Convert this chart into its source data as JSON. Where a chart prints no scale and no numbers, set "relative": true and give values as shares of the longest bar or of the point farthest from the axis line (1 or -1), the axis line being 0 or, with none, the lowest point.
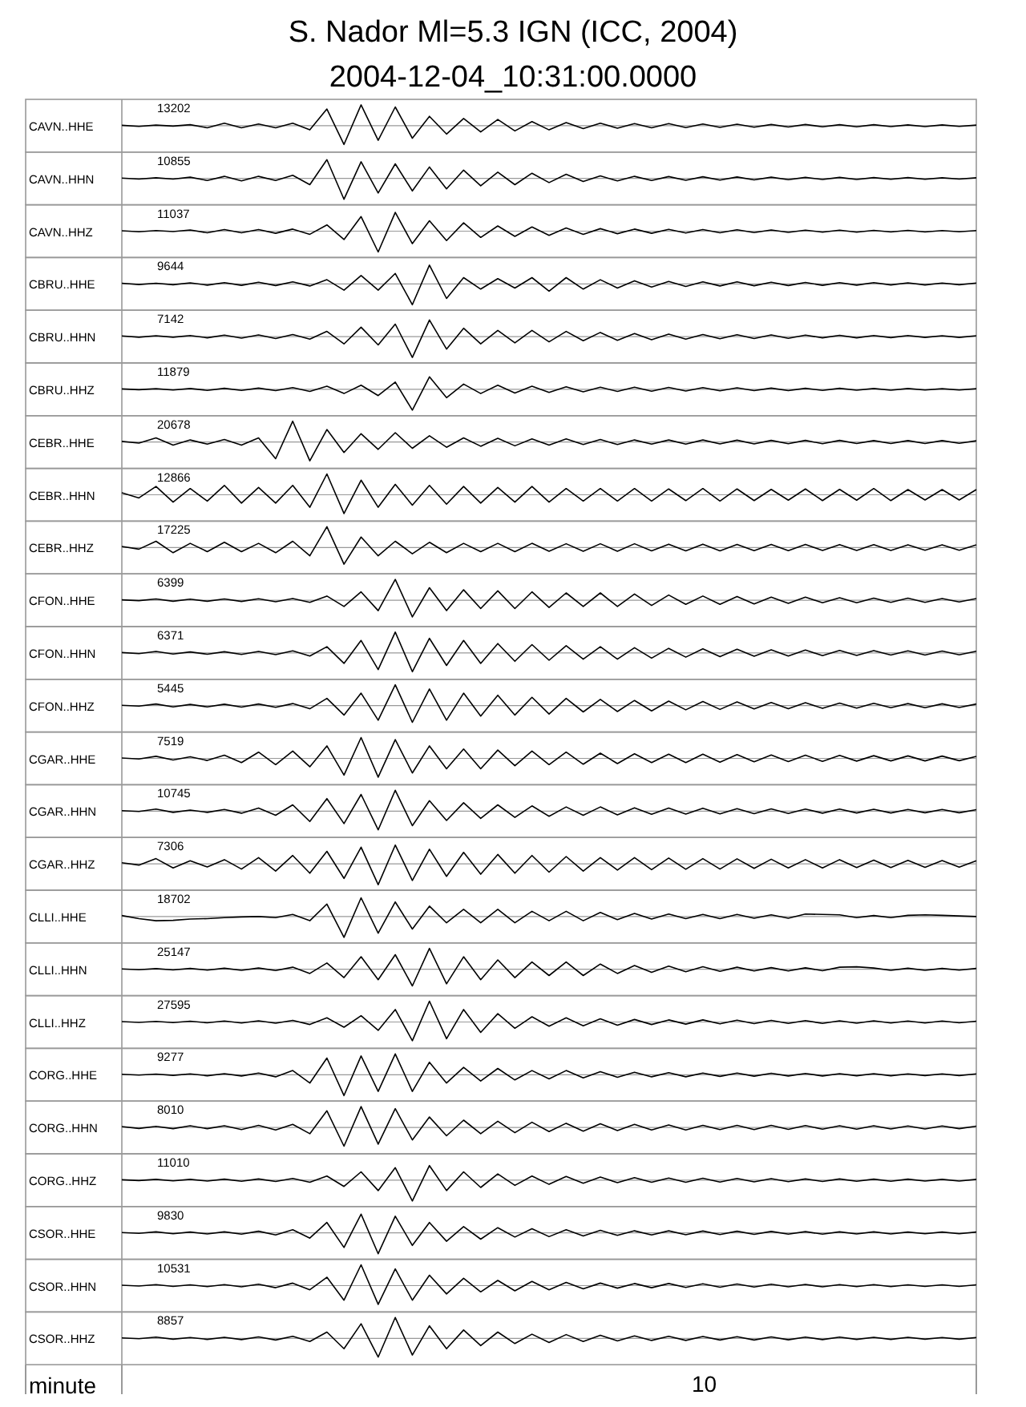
{
  "chart_data": [
    {
      "type": "line",
      "title": "S. Nador Ml=5.3 IGN (ICC, 2004)",
      "subtitle": "2004-12-04_10:31:00.0000",
      "color": "#000000",
      "ylabel": "CAVN..HHE",
      "annotations": [
        "13202"
      ],
      "relative": true,
      "categories": [
        null,
        null,
        null,
        null,
        null,
        null,
        null,
        null,
        null,
        null,
        null,
        null,
        null,
        null,
        null,
        null,
        null,
        null,
        null,
        null,
        null,
        null,
        null,
        null,
        null,
        null,
        null,
        null,
        null,
        null,
        null,
        null,
        null,
        null,
        null,
        null,
        null,
        null,
        null,
        null,
        null,
        null,
        null,
        null,
        null,
        null,
        null,
        null,
        null,
        null,
        null
      ],
      "values": [
        0.02,
        -0.03,
        0.03,
        -0.02,
        0.05,
        -0.1,
        0.12,
        -0.1,
        0.08,
        -0.1,
        0.12,
        -0.2,
        0.8,
        -0.9,
        1,
        -0.7,
        0.9,
        -0.6,
        0.45,
        -0.4,
        0.35,
        -0.3,
        0.3,
        -0.25,
        0.2,
        -0.2,
        0.15,
        -0.14,
        0.12,
        -0.12,
        0.1,
        -0.1,
        0.1,
        -0.09,
        0.08,
        -0.08,
        0.07,
        -0.07,
        0.06,
        -0.06,
        0.06,
        -0.05,
        0.05,
        -0.05,
        0.05,
        -0.04,
        0.04,
        -0.04,
        0.04,
        -0.03,
        0.03
      ]
    },
    {
      "type": "line",
      "color": "#000000",
      "ylabel": "CAVN..HHN",
      "annotations": [
        "10855"
      ],
      "relative": true,
      "categories": [
        null,
        null,
        null,
        null,
        null,
        null,
        null,
        null,
        null,
        null,
        null,
        null,
        null,
        null,
        null,
        null,
        null,
        null,
        null,
        null,
        null,
        null,
        null,
        null,
        null,
        null,
        null,
        null,
        null,
        null,
        null,
        null,
        null,
        null,
        null,
        null,
        null,
        null,
        null,
        null,
        null,
        null,
        null,
        null,
        null,
        null,
        null,
        null,
        null,
        null,
        null
      ],
      "values": [
        0.02,
        -0.03,
        0.03,
        -0.03,
        0.06,
        -0.1,
        0.1,
        -0.12,
        0.1,
        -0.1,
        0.15,
        -0.3,
        0.9,
        -1,
        0.8,
        -0.7,
        0.7,
        -0.6,
        0.55,
        -0.5,
        0.4,
        -0.35,
        0.3,
        -0.3,
        0.25,
        -0.2,
        0.2,
        -0.15,
        0.12,
        -0.12,
        0.1,
        -0.1,
        0.09,
        -0.09,
        0.08,
        -0.08,
        0.07,
        -0.07,
        0.06,
        -0.06,
        0.05,
        -0.05,
        0.05,
        -0.05,
        0.04,
        -0.04,
        0.04,
        -0.04,
        0.03,
        -0.03,
        0.03
      ]
    },
    {
      "type": "line",
      "color": "#000000",
      "ylabel": "CAVN..HHZ",
      "annotations": [
        "11037"
      ],
      "relative": true,
      "categories": [
        null,
        null,
        null,
        null,
        null,
        null,
        null,
        null,
        null,
        null,
        null,
        null,
        null,
        null,
        null,
        null,
        null,
        null,
        null,
        null,
        null,
        null,
        null,
        null,
        null,
        null,
        null,
        null,
        null,
        null,
        null,
        null,
        null,
        null,
        null,
        null,
        null,
        null,
        null,
        null,
        null,
        null,
        null,
        null,
        null,
        null,
        null,
        null,
        null,
        null,
        null
      ],
      "values": [
        0.02,
        -0.03,
        0.03,
        -0.02,
        0.06,
        -0.08,
        0.08,
        -0.08,
        0.08,
        -0.1,
        0.1,
        -0.15,
        0.3,
        -0.4,
        0.7,
        -1,
        0.9,
        -0.6,
        0.5,
        -0.45,
        0.4,
        -0.3,
        0.25,
        -0.25,
        0.2,
        -0.2,
        0.15,
        -0.15,
        0.12,
        -0.12,
        0.1,
        -0.1,
        0.09,
        -0.09,
        0.08,
        -0.08,
        0.07,
        -0.07,
        0.06,
        -0.06,
        0.05,
        -0.05,
        0.05,
        -0.05,
        0.04,
        -0.04,
        0.04,
        -0.04,
        0.03,
        -0.03,
        0.03
      ]
    },
    {
      "type": "line",
      "color": "#000000",
      "ylabel": "CBRU..HHE",
      "annotations": [
        "9644"
      ],
      "relative": true,
      "categories": [
        null,
        null,
        null,
        null,
        null,
        null,
        null,
        null,
        null,
        null,
        null,
        null,
        null,
        null,
        null,
        null,
        null,
        null,
        null,
        null,
        null,
        null,
        null,
        null,
        null,
        null,
        null,
        null,
        null,
        null,
        null,
        null,
        null,
        null,
        null,
        null,
        null,
        null,
        null,
        null,
        null,
        null,
        null,
        null,
        null,
        null,
        null,
        null,
        null,
        null,
        null
      ],
      "values": [
        0.03,
        -0.03,
        0.03,
        -0.04,
        0.05,
        -0.06,
        0.06,
        -0.07,
        0.08,
        -0.08,
        0.1,
        -0.1,
        0.2,
        -0.3,
        0.4,
        -0.3,
        0.5,
        -1,
        0.9,
        -0.7,
        0.3,
        -0.25,
        0.25,
        -0.2,
        0.3,
        -0.35,
        0.3,
        -0.25,
        0.2,
        -0.2,
        0.15,
        -0.15,
        0.12,
        -0.12,
        0.1,
        -0.1,
        0.1,
        -0.09,
        0.08,
        -0.08,
        0.07,
        -0.07,
        0.06,
        -0.06,
        0.06,
        -0.05,
        0.05,
        -0.05,
        0.04,
        -0.04,
        0.04
      ]
    },
    {
      "type": "line",
      "color": "#000000",
      "ylabel": "CBRU..HHN",
      "annotations": [
        "7142"
      ],
      "relative": true,
      "categories": [
        null,
        null,
        null,
        null,
        null,
        null,
        null,
        null,
        null,
        null,
        null,
        null,
        null,
        null,
        null,
        null,
        null,
        null,
        null,
        null,
        null,
        null,
        null,
        null,
        null,
        null,
        null,
        null,
        null,
        null,
        null,
        null,
        null,
        null,
        null,
        null,
        null,
        null,
        null,
        null,
        null,
        null,
        null,
        null,
        null,
        null,
        null,
        null,
        null,
        null,
        null
      ],
      "values": [
        0.03,
        -0.03,
        0.04,
        -0.03,
        0.05,
        -0.06,
        0.07,
        -0.07,
        0.08,
        -0.09,
        0.1,
        -0.12,
        0.25,
        -0.35,
        0.45,
        -0.4,
        0.6,
        -1,
        0.8,
        -0.6,
        0.4,
        -0.35,
        0.3,
        -0.3,
        0.3,
        -0.25,
        0.25,
        -0.2,
        0.2,
        -0.18,
        0.15,
        -0.15,
        0.12,
        -0.12,
        0.1,
        -0.1,
        0.09,
        -0.09,
        0.08,
        -0.08,
        0.07,
        -0.06,
        0.06,
        -0.06,
        0.05,
        -0.05,
        0.05,
        -0.04,
        0.04,
        -0.04,
        0.04
      ]
    },
    {
      "type": "line",
      "color": "#000000",
      "ylabel": "CBRU..HHZ",
      "annotations": [
        "11879"
      ],
      "relative": true,
      "categories": [
        null,
        null,
        null,
        null,
        null,
        null,
        null,
        null,
        null,
        null,
        null,
        null,
        null,
        null,
        null,
        null,
        null,
        null,
        null,
        null,
        null,
        null,
        null,
        null,
        null,
        null,
        null,
        null,
        null,
        null,
        null,
        null,
        null,
        null,
        null,
        null,
        null,
        null,
        null,
        null,
        null,
        null,
        null,
        null,
        null,
        null,
        null,
        null,
        null,
        null,
        null
      ],
      "values": [
        0.02,
        -0.02,
        0.03,
        -0.03,
        0.04,
        -0.05,
        0.05,
        -0.05,
        0.06,
        -0.06,
        0.08,
        -0.1,
        0.15,
        -0.2,
        0.2,
        -0.3,
        0.35,
        -1,
        0.6,
        -0.4,
        0.25,
        -0.2,
        0.2,
        -0.18,
        0.15,
        -0.15,
        0.12,
        -0.12,
        0.1,
        -0.1,
        0.1,
        -0.09,
        0.09,
        -0.08,
        0.08,
        -0.07,
        0.07,
        -0.06,
        0.06,
        -0.06,
        0.05,
        -0.05,
        0.05,
        -0.04,
        0.04,
        -0.04,
        0.04,
        -0.03,
        0.03,
        -0.03,
        0.03
      ]
    },
    {
      "type": "line",
      "color": "#000000",
      "ylabel": "CEBR..HHE",
      "annotations": [
        "20678"
      ],
      "relative": true,
      "categories": [
        null,
        null,
        null,
        null,
        null,
        null,
        null,
        null,
        null,
        null,
        null,
        null,
        null,
        null,
        null,
        null,
        null,
        null,
        null,
        null,
        null,
        null,
        null,
        null,
        null,
        null,
        null,
        null,
        null,
        null,
        null,
        null,
        null,
        null,
        null,
        null,
        null,
        null,
        null,
        null,
        null,
        null,
        null,
        null,
        null,
        null,
        null,
        null,
        null,
        null,
        null
      ],
      "values": [
        0.03,
        -0.05,
        0.2,
        -0.15,
        0.1,
        -0.1,
        0.12,
        -0.15,
        0.2,
        -0.8,
        1,
        -0.9,
        0.6,
        -0.5,
        0.4,
        -0.35,
        0.45,
        -0.3,
        0.3,
        -0.25,
        0.2,
        -0.2,
        0.18,
        -0.18,
        0.15,
        -0.15,
        0.15,
        -0.12,
        0.12,
        -0.12,
        0.1,
        -0.1,
        0.1,
        -0.1,
        0.1,
        -0.09,
        0.09,
        -0.09,
        0.08,
        -0.08,
        0.08,
        -0.08,
        0.08,
        -0.07,
        0.07,
        -0.07,
        0.07,
        -0.07,
        0.07,
        -0.06,
        0.06
      ]
    },
    {
      "type": "line",
      "color": "#000000",
      "ylabel": "CEBR..HHN",
      "annotations": [
        "12866"
      ],
      "relative": true,
      "categories": [
        null,
        null,
        null,
        null,
        null,
        null,
        null,
        null,
        null,
        null,
        null,
        null,
        null,
        null,
        null,
        null,
        null,
        null,
        null,
        null,
        null,
        null,
        null,
        null,
        null,
        null,
        null,
        null,
        null,
        null,
        null,
        null,
        null,
        null,
        null,
        null,
        null,
        null,
        null,
        null,
        null,
        null,
        null,
        null,
        null,
        null,
        null,
        null,
        null,
        null,
        null
      ],
      "values": [
        0.1,
        -0.15,
        0.4,
        -0.35,
        0.3,
        -0.3,
        0.45,
        -0.4,
        0.35,
        -0.4,
        0.45,
        -0.6,
        1,
        -0.9,
        0.7,
        -0.6,
        0.5,
        -0.5,
        0.45,
        -0.45,
        0.4,
        -0.4,
        0.35,
        -0.35,
        0.4,
        -0.35,
        0.3,
        -0.3,
        0.3,
        -0.3,
        0.3,
        -0.3,
        0.28,
        -0.28,
        0.3,
        -0.3,
        0.28,
        -0.28,
        0.26,
        -0.26,
        0.28,
        -0.28,
        0.26,
        -0.26,
        0.3,
        -0.28,
        0.25,
        -0.25,
        0.25,
        -0.25,
        0.25
      ]
    },
    {
      "type": "line",
      "color": "#000000",
      "ylabel": "CEBR..HHZ",
      "annotations": [
        "17225"
      ],
      "relative": true,
      "categories": [
        null,
        null,
        null,
        null,
        null,
        null,
        null,
        null,
        null,
        null,
        null,
        null,
        null,
        null,
        null,
        null,
        null,
        null,
        null,
        null,
        null,
        null,
        null,
        null,
        null,
        null,
        null,
        null,
        null,
        null,
        null,
        null,
        null,
        null,
        null,
        null,
        null,
        null,
        null,
        null,
        null,
        null,
        null,
        null,
        null,
        null,
        null,
        null,
        null,
        null,
        null
      ],
      "values": [
        0.05,
        -0.08,
        0.3,
        -0.25,
        0.2,
        -0.2,
        0.25,
        -0.2,
        0.2,
        -0.25,
        0.3,
        -0.4,
        1,
        -0.8,
        0.5,
        -0.4,
        0.3,
        -0.3,
        0.25,
        -0.25,
        0.2,
        -0.2,
        0.2,
        -0.2,
        0.2,
        -0.18,
        0.18,
        -0.18,
        0.18,
        -0.18,
        0.18,
        -0.16,
        0.16,
        -0.16,
        0.16,
        -0.16,
        0.15,
        -0.15,
        0.15,
        -0.15,
        0.15,
        -0.14,
        0.14,
        -0.14,
        0.14,
        -0.14,
        0.13,
        -0.13,
        0.13,
        -0.13,
        0.13
      ]
    },
    {
      "type": "line",
      "color": "#000000",
      "ylabel": "CFON..HHE",
      "annotations": [
        "6399"
      ],
      "relative": true,
      "categories": [
        null,
        null,
        null,
        null,
        null,
        null,
        null,
        null,
        null,
        null,
        null,
        null,
        null,
        null,
        null,
        null,
        null,
        null,
        null,
        null,
        null,
        null,
        null,
        null,
        null,
        null,
        null,
        null,
        null,
        null,
        null,
        null,
        null,
        null,
        null,
        null,
        null,
        null,
        null,
        null,
        null,
        null,
        null,
        null,
        null,
        null,
        null,
        null,
        null,
        null,
        null
      ],
      "values": [
        0.02,
        -0.02,
        0.06,
        -0.05,
        0.05,
        -0.05,
        0.06,
        -0.06,
        0.07,
        -0.07,
        0.08,
        -0.1,
        0.2,
        -0.3,
        0.4,
        -0.5,
        1,
        -0.8,
        0.6,
        -0.5,
        0.5,
        -0.4,
        0.45,
        -0.4,
        0.4,
        -0.35,
        0.35,
        -0.3,
        0.35,
        -0.3,
        0.3,
        -0.25,
        0.25,
        -0.2,
        0.2,
        -0.2,
        0.18,
        -0.18,
        0.15,
        -0.15,
        0.15,
        -0.12,
        0.12,
        -0.12,
        0.1,
        -0.1,
        0.1,
        -0.1,
        0.08,
        -0.08,
        0.08
      ]
    },
    {
      "type": "line",
      "color": "#000000",
      "ylabel": "CFON..HHN",
      "annotations": [
        "6371"
      ],
      "relative": true,
      "categories": [
        null,
        null,
        null,
        null,
        null,
        null,
        null,
        null,
        null,
        null,
        null,
        null,
        null,
        null,
        null,
        null,
        null,
        null,
        null,
        null,
        null,
        null,
        null,
        null,
        null,
        null,
        null,
        null,
        null,
        null,
        null,
        null,
        null,
        null,
        null,
        null,
        null,
        null,
        null,
        null,
        null,
        null,
        null,
        null,
        null,
        null,
        null,
        null,
        null,
        null,
        null
      ],
      "values": [
        0.02,
        -0.03,
        0.07,
        -0.05,
        0.05,
        -0.06,
        0.06,
        -0.07,
        0.07,
        -0.08,
        0.1,
        -0.15,
        0.3,
        -0.5,
        0.6,
        -0.8,
        1,
        -0.9,
        0.7,
        -0.6,
        0.6,
        -0.5,
        0.45,
        -0.4,
        0.4,
        -0.35,
        0.35,
        -0.3,
        0.3,
        -0.3,
        0.25,
        -0.25,
        0.22,
        -0.2,
        0.2,
        -0.18,
        0.18,
        -0.16,
        0.15,
        -0.15,
        0.14,
        -0.13,
        0.12,
        -0.12,
        0.11,
        -0.1,
        0.1,
        -0.1,
        0.09,
        -0.09,
        0.08
      ]
    },
    {
      "type": "line",
      "color": "#000000",
      "ylabel": "CFON..HHZ",
      "annotations": [
        "5445"
      ],
      "relative": true,
      "categories": [
        null,
        null,
        null,
        null,
        null,
        null,
        null,
        null,
        null,
        null,
        null,
        null,
        null,
        null,
        null,
        null,
        null,
        null,
        null,
        null,
        null,
        null,
        null,
        null,
        null,
        null,
        null,
        null,
        null,
        null,
        null,
        null,
        null,
        null,
        null,
        null,
        null,
        null,
        null,
        null,
        null,
        null,
        null,
        null,
        null,
        null,
        null,
        null,
        null,
        null,
        null
      ],
      "values": [
        0.02,
        -0.02,
        0.08,
        -0.06,
        0.06,
        -0.06,
        0.07,
        -0.07,
        0.08,
        -0.08,
        0.1,
        -0.15,
        0.35,
        -0.45,
        0.6,
        -0.7,
        1,
        -0.8,
        0.8,
        -0.7,
        0.6,
        -0.5,
        0.5,
        -0.45,
        0.4,
        -0.4,
        0.35,
        -0.3,
        0.3,
        -0.28,
        0.25,
        -0.25,
        0.22,
        -0.2,
        0.2,
        -0.18,
        0.18,
        -0.16,
        0.15,
        -0.15,
        0.14,
        -0.13,
        0.12,
        -0.12,
        0.11,
        -0.1,
        0.1,
        -0.1,
        0.09,
        -0.09,
        0.08
      ]
    },
    {
      "type": "line",
      "color": "#000000",
      "ylabel": "CGAR..HHE",
      "annotations": [
        "7519"
      ],
      "relative": true,
      "categories": [
        null,
        null,
        null,
        null,
        null,
        null,
        null,
        null,
        null,
        null,
        null,
        null,
        null,
        null,
        null,
        null,
        null,
        null,
        null,
        null,
        null,
        null,
        null,
        null,
        null,
        null,
        null,
        null,
        null,
        null,
        null,
        null,
        null,
        null,
        null,
        null,
        null,
        null,
        null,
        null,
        null,
        null,
        null,
        null,
        null,
        null,
        null,
        null,
        null,
        null,
        null
      ],
      "values": [
        0.02,
        -0.03,
        0.1,
        -0.08,
        0.08,
        -0.1,
        0.15,
        -0.2,
        0.3,
        -0.3,
        0.35,
        -0.4,
        0.6,
        -0.8,
        1,
        -0.9,
        0.9,
        -0.7,
        0.6,
        -0.5,
        0.45,
        -0.5,
        0.4,
        -0.35,
        0.35,
        -0.3,
        0.3,
        -0.28,
        0.25,
        -0.25,
        0.22,
        -0.2,
        0.2,
        -0.2,
        0.2,
        -0.18,
        0.18,
        -0.16,
        0.16,
        -0.15,
        0.15,
        -0.14,
        0.14,
        -0.13,
        0.13,
        -0.12,
        0.12,
        -0.12,
        0.11,
        -0.11,
        0.1
      ]
    },
    {
      "type": "line",
      "color": "#000000",
      "ylabel": "CGAR..HHN",
      "annotations": [
        "10745"
      ],
      "relative": true,
      "categories": [
        null,
        null,
        null,
        null,
        null,
        null,
        null,
        null,
        null,
        null,
        null,
        null,
        null,
        null,
        null,
        null,
        null,
        null,
        null,
        null,
        null,
        null,
        null,
        null,
        null,
        null,
        null,
        null,
        null,
        null,
        null,
        null,
        null,
        null,
        null,
        null,
        null,
        null,
        null,
        null,
        null,
        null,
        null,
        null,
        null,
        null,
        null,
        null,
        null,
        null,
        null
      ],
      "values": [
        0.02,
        -0.02,
        0.1,
        -0.06,
        0.05,
        -0.06,
        0.08,
        -0.1,
        0.15,
        -0.2,
        0.3,
        -0.5,
        0.6,
        -0.6,
        0.8,
        -0.9,
        1,
        -0.7,
        0.5,
        -0.45,
        0.4,
        -0.35,
        0.3,
        -0.3,
        0.25,
        -0.25,
        0.2,
        -0.2,
        0.2,
        -0.18,
        0.16,
        -0.15,
        0.15,
        -0.14,
        0.14,
        -0.13,
        0.12,
        -0.12,
        0.11,
        -0.11,
        0.1,
        -0.1,
        0.1,
        -0.09,
        0.09,
        -0.09,
        0.08,
        -0.08,
        0.08,
        -0.08,
        0.07
      ]
    },
    {
      "type": "line",
      "color": "#000000",
      "ylabel": "CGAR..HHZ",
      "annotations": [
        "7306"
      ],
      "relative": true,
      "categories": [
        null,
        null,
        null,
        null,
        null,
        null,
        null,
        null,
        null,
        null,
        null,
        null,
        null,
        null,
        null,
        null,
        null,
        null,
        null,
        null,
        null,
        null,
        null,
        null,
        null,
        null,
        null,
        null,
        null,
        null,
        null,
        null,
        null,
        null,
        null,
        null,
        null,
        null,
        null,
        null,
        null,
        null,
        null,
        null,
        null,
        null,
        null,
        null,
        null,
        null,
        null
      ],
      "values": [
        0.05,
        -0.06,
        0.25,
        -0.2,
        0.15,
        -0.15,
        0.2,
        -0.25,
        0.3,
        -0.35,
        0.4,
        -0.45,
        0.6,
        -0.7,
        0.8,
        -1,
        0.9,
        -0.8,
        0.7,
        -0.6,
        0.55,
        -0.5,
        0.45,
        -0.45,
        0.4,
        -0.4,
        0.35,
        -0.35,
        0.3,
        -0.3,
        0.3,
        -0.28,
        0.28,
        -0.26,
        0.25,
        -0.25,
        0.24,
        -0.22,
        0.22,
        -0.2,
        0.2,
        -0.2,
        0.2,
        -0.18,
        0.18,
        -0.18,
        0.17,
        -0.17,
        0.16,
        -0.16,
        0.15
      ]
    },
    {
      "type": "line",
      "color": "#000000",
      "ylabel": "CLLI..HHE",
      "annotations": [
        "18702"
      ],
      "relative": true,
      "categories": [
        null,
        null,
        null,
        null,
        null,
        null,
        null,
        null,
        null,
        null,
        null,
        null,
        null,
        null,
        null,
        null,
        null,
        null,
        null,
        null,
        null,
        null,
        null,
        null,
        null,
        null,
        null,
        null,
        null,
        null,
        null,
        null,
        null,
        null,
        null,
        null,
        null,
        null,
        null,
        null,
        null,
        null,
        null,
        null,
        null,
        null,
        null,
        null,
        null,
        null,
        null
      ],
      "values": [
        0.05,
        -0.1,
        -0.2,
        -0.18,
        -0.12,
        -0.1,
        -0.05,
        -0.02,
        0,
        -0.05,
        0.1,
        -0.2,
        0.6,
        -1,
        0.9,
        -0.8,
        0.7,
        -0.6,
        0.5,
        -0.3,
        0.35,
        -0.3,
        0.35,
        -0.3,
        0.25,
        -0.2,
        0.25,
        -0.2,
        0.2,
        -0.15,
        0.15,
        -0.12,
        0.12,
        -0.1,
        0.1,
        -0.1,
        0.1,
        -0.08,
        0.08,
        -0.08,
        0.12,
        0.1,
        0.08,
        -0.05,
        0.05,
        -0.05,
        0.06,
        0.08,
        0.06,
        0.03,
        0
      ]
    },
    {
      "type": "line",
      "color": "#000000",
      "ylabel": "CLLI..HHN",
      "annotations": [
        "25147"
      ],
      "relative": true,
      "categories": [
        null,
        null,
        null,
        null,
        null,
        null,
        null,
        null,
        null,
        null,
        null,
        null,
        null,
        null,
        null,
        null,
        null,
        null,
        null,
        null,
        null,
        null,
        null,
        null,
        null,
        null,
        null,
        null,
        null,
        null,
        null,
        null,
        null,
        null,
        null,
        null,
        null,
        null,
        null,
        null,
        null,
        null,
        null,
        null,
        null,
        null,
        null,
        null,
        null,
        null,
        null
      ],
      "values": [
        0.02,
        -0.02,
        0.03,
        -0.03,
        0.04,
        -0.04,
        0.05,
        -0.05,
        0.06,
        -0.06,
        0.1,
        -0.2,
        0.3,
        -0.4,
        0.6,
        -0.5,
        0.7,
        -0.8,
        1,
        -0.7,
        0.6,
        -0.5,
        0.45,
        -0.4,
        0.35,
        -0.3,
        0.35,
        -0.3,
        0.25,
        -0.2,
        0.18,
        -0.15,
        0.15,
        -0.12,
        0.12,
        -0.1,
        0.1,
        -0.08,
        0.08,
        -0.08,
        0.07,
        -0.07,
        0.1,
        0.12,
        0.06,
        -0.05,
        0.05,
        -0.05,
        0.04,
        -0.04,
        0.04
      ]
    },
    {
      "type": "line",
      "color": "#000000",
      "ylabel": "CLLI..HHZ",
      "annotations": [
        "27595"
      ],
      "relative": true,
      "categories": [
        null,
        null,
        null,
        null,
        null,
        null,
        null,
        null,
        null,
        null,
        null,
        null,
        null,
        null,
        null,
        null,
        null,
        null,
        null,
        null,
        null,
        null,
        null,
        null,
        null,
        null,
        null,
        null,
        null,
        null,
        null,
        null,
        null,
        null,
        null,
        null,
        null,
        null,
        null,
        null,
        null,
        null,
        null,
        null,
        null,
        null,
        null,
        null,
        null,
        null,
        null
      ],
      "values": [
        0.02,
        -0.02,
        0.03,
        -0.03,
        0.04,
        -0.04,
        0.05,
        -0.05,
        0.06,
        -0.06,
        0.08,
        -0.12,
        0.2,
        -0.25,
        0.3,
        -0.4,
        0.6,
        -0.9,
        1,
        -0.8,
        0.6,
        -0.5,
        0.4,
        -0.3,
        0.25,
        -0.2,
        0.2,
        -0.18,
        0.15,
        -0.15,
        0.12,
        -0.12,
        0.1,
        -0.1,
        0.1,
        -0.09,
        0.09,
        -0.08,
        0.08,
        -0.07,
        0.07,
        -0.07,
        0.06,
        -0.06,
        0.06,
        -0.05,
        0.05,
        -0.05,
        0.05,
        -0.04,
        0.04
      ]
    },
    {
      "type": "line",
      "color": "#000000",
      "ylabel": "CORG..HHE",
      "annotations": [
        "9277"
      ],
      "relative": true,
      "categories": [
        null,
        null,
        null,
        null,
        null,
        null,
        null,
        null,
        null,
        null,
        null,
        null,
        null,
        null,
        null,
        null,
        null,
        null,
        null,
        null,
        null,
        null,
        null,
        null,
        null,
        null,
        null,
        null,
        null,
        null,
        null,
        null,
        null,
        null,
        null,
        null,
        null,
        null,
        null,
        null,
        null,
        null,
        null,
        null,
        null,
        null,
        null,
        null,
        null,
        null,
        null
      ],
      "values": [
        0.02,
        -0.02,
        0.03,
        -0.03,
        0.04,
        -0.05,
        0.05,
        -0.06,
        0.08,
        -0.1,
        0.2,
        -0.4,
        0.8,
        -1,
        0.9,
        -0.8,
        1,
        -0.8,
        0.6,
        -0.4,
        0.35,
        -0.3,
        0.3,
        -0.25,
        0.2,
        -0.2,
        0.2,
        -0.15,
        0.15,
        -0.12,
        0.12,
        -0.1,
        0.1,
        -0.1,
        0.08,
        -0.08,
        0.08,
        -0.07,
        0.07,
        -0.06,
        0.06,
        -0.06,
        0.05,
        -0.05,
        0.05,
        -0.05,
        0.04,
        -0.04,
        0.04,
        -0.04,
        0.04
      ]
    },
    {
      "type": "line",
      "color": "#000000",
      "ylabel": "CORG..HHN",
      "annotations": [
        "8010"
      ],
      "relative": true,
      "categories": [
        null,
        null,
        null,
        null,
        null,
        null,
        null,
        null,
        null,
        null,
        null,
        null,
        null,
        null,
        null,
        null,
        null,
        null,
        null,
        null,
        null,
        null,
        null,
        null,
        null,
        null,
        null,
        null,
        null,
        null,
        null,
        null,
        null,
        null,
        null,
        null,
        null,
        null,
        null,
        null,
        null,
        null,
        null,
        null,
        null,
        null,
        null,
        null,
        null,
        null,
        null
      ],
      "values": [
        0.04,
        -0.05,
        0.05,
        -0.06,
        0.08,
        -0.06,
        0.08,
        -0.1,
        0.1,
        -0.12,
        0.15,
        -0.3,
        0.8,
        -0.9,
        1,
        -0.8,
        0.9,
        -0.6,
        0.5,
        -0.4,
        0.35,
        -0.3,
        0.3,
        -0.25,
        0.25,
        -0.2,
        0.2,
        -0.18,
        0.18,
        -0.15,
        0.15,
        -0.12,
        0.12,
        -0.12,
        0.1,
        -0.1,
        0.1,
        -0.1,
        0.1,
        -0.09,
        0.09,
        -0.08,
        0.08,
        -0.08,
        0.08,
        -0.07,
        0.07,
        -0.07,
        0.07,
        -0.06,
        0.06
      ]
    },
    {
      "type": "line",
      "color": "#000000",
      "ylabel": "CORG..HHZ",
      "annotations": [
        "11010"
      ],
      "relative": true,
      "categories": [
        null,
        null,
        null,
        null,
        null,
        null,
        null,
        null,
        null,
        null,
        null,
        null,
        null,
        null,
        null,
        null,
        null,
        null,
        null,
        null,
        null,
        null,
        null,
        null,
        null,
        null,
        null,
        null,
        null,
        null,
        null,
        null,
        null,
        null,
        null,
        null,
        null,
        null,
        null,
        null,
        null,
        null,
        null,
        null,
        null,
        null,
        null,
        null,
        null,
        null,
        null
      ],
      "values": [
        0.02,
        -0.02,
        0.04,
        -0.03,
        0.04,
        -0.04,
        0.05,
        -0.05,
        0.06,
        -0.06,
        0.08,
        -0.1,
        0.2,
        -0.3,
        0.4,
        -0.5,
        0.6,
        -1,
        0.7,
        -0.5,
        0.4,
        -0.35,
        0.3,
        -0.25,
        0.2,
        -0.2,
        0.18,
        -0.15,
        0.15,
        -0.12,
        0.12,
        -0.1,
        0.1,
        -0.1,
        0.09,
        -0.09,
        0.08,
        -0.08,
        0.07,
        -0.07,
        0.06,
        -0.06,
        0.06,
        -0.05,
        0.05,
        -0.05,
        0.05,
        -0.04,
        0.04,
        -0.04,
        0.04
      ]
    },
    {
      "type": "line",
      "color": "#000000",
      "ylabel": "CSOR..HHE",
      "annotations": [
        "9830"
      ],
      "relative": true,
      "categories": [
        null,
        null,
        null,
        null,
        null,
        null,
        null,
        null,
        null,
        null,
        null,
        null,
        null,
        null,
        null,
        null,
        null,
        null,
        null,
        null,
        null,
        null,
        null,
        null,
        null,
        null,
        null,
        null,
        null,
        null,
        null,
        null,
        null,
        null,
        null,
        null,
        null,
        null,
        null,
        null,
        null,
        null,
        null,
        null,
        null,
        null,
        null,
        null,
        null,
        null,
        null
      ],
      "values": [
        0.02,
        -0.02,
        0.05,
        -0.04,
        0.04,
        -0.05,
        0.05,
        -0.06,
        0.08,
        -0.1,
        0.15,
        -0.25,
        0.5,
        -0.7,
        0.9,
        -1,
        0.8,
        -0.6,
        0.5,
        -0.4,
        0.3,
        -0.3,
        0.25,
        -0.2,
        0.2,
        -0.18,
        0.15,
        -0.15,
        0.12,
        -0.12,
        0.1,
        -0.1,
        0.1,
        -0.09,
        0.09,
        -0.08,
        0.08,
        -0.07,
        0.07,
        -0.06,
        0.06,
        -0.06,
        0.05,
        -0.05,
        0.05,
        -0.05,
        0.04,
        -0.04,
        0.04,
        -0.04,
        0.04
      ]
    },
    {
      "type": "line",
      "color": "#000000",
      "ylabel": "CSOR..HHN",
      "annotations": [
        "10531"
      ],
      "relative": true,
      "categories": [
        null,
        null,
        null,
        null,
        null,
        null,
        null,
        null,
        null,
        null,
        null,
        null,
        null,
        null,
        null,
        null,
        null,
        null,
        null,
        null,
        null,
        null,
        null,
        null,
        null,
        null,
        null,
        null,
        null,
        null,
        null,
        null,
        null,
        null,
        null,
        null,
        null,
        null,
        null,
        null,
        null,
        null,
        null,
        null,
        null,
        null,
        null,
        null,
        null,
        null,
        null
      ],
      "values": [
        0.02,
        -0.02,
        0.05,
        -0.04,
        0.04,
        -0.05,
        0.05,
        -0.06,
        0.07,
        -0.1,
        0.12,
        -0.2,
        0.4,
        -0.7,
        1,
        -0.9,
        0.8,
        -0.7,
        0.5,
        -0.4,
        0.35,
        -0.3,
        0.25,
        -0.25,
        0.2,
        -0.2,
        0.15,
        -0.15,
        0.12,
        -0.12,
        0.1,
        -0.1,
        0.1,
        -0.09,
        0.09,
        -0.08,
        0.08,
        -0.07,
        0.07,
        -0.06,
        0.06,
        -0.06,
        0.05,
        -0.05,
        0.05,
        -0.05,
        0.04,
        -0.04,
        0.04,
        -0.04,
        0.04
      ]
    },
    {
      "type": "line",
      "color": "#000000",
      "ylabel": "CSOR..HHZ",
      "xlabel": "minute",
      "annotations": [
        "8857",
        "10"
      ],
      "relative": true,
      "categories": [
        null,
        null,
        null,
        null,
        null,
        null,
        null,
        null,
        null,
        null,
        null,
        null,
        null,
        null,
        null,
        null,
        null,
        null,
        null,
        null,
        null,
        null,
        null,
        null,
        null,
        null,
        null,
        null,
        null,
        null,
        null,
        null,
        null,
        null,
        null,
        null,
        null,
        null,
        null,
        null,
        null,
        null,
        null,
        null,
        null,
        null,
        null,
        null,
        null,
        null,
        null
      ],
      "values": [
        0.02,
        -0.02,
        0.06,
        -0.04,
        0.04,
        -0.05,
        0.05,
        -0.06,
        0.07,
        -0.08,
        0.1,
        -0.15,
        0.3,
        -0.5,
        0.7,
        -0.9,
        1,
        -0.8,
        0.6,
        -0.5,
        0.4,
        -0.35,
        0.3,
        -0.25,
        0.2,
        -0.2,
        0.18,
        -0.15,
        0.15,
        -0.12,
        0.12,
        -0.1,
        0.1,
        -0.1,
        0.09,
        -0.08,
        0.08,
        -0.08,
        0.07,
        -0.07,
        0.06,
        -0.06,
        0.06,
        -0.05,
        0.05,
        -0.05,
        0.05,
        -0.04,
        0.04,
        -0.04,
        0.04
      ]
    }
  ]
}
